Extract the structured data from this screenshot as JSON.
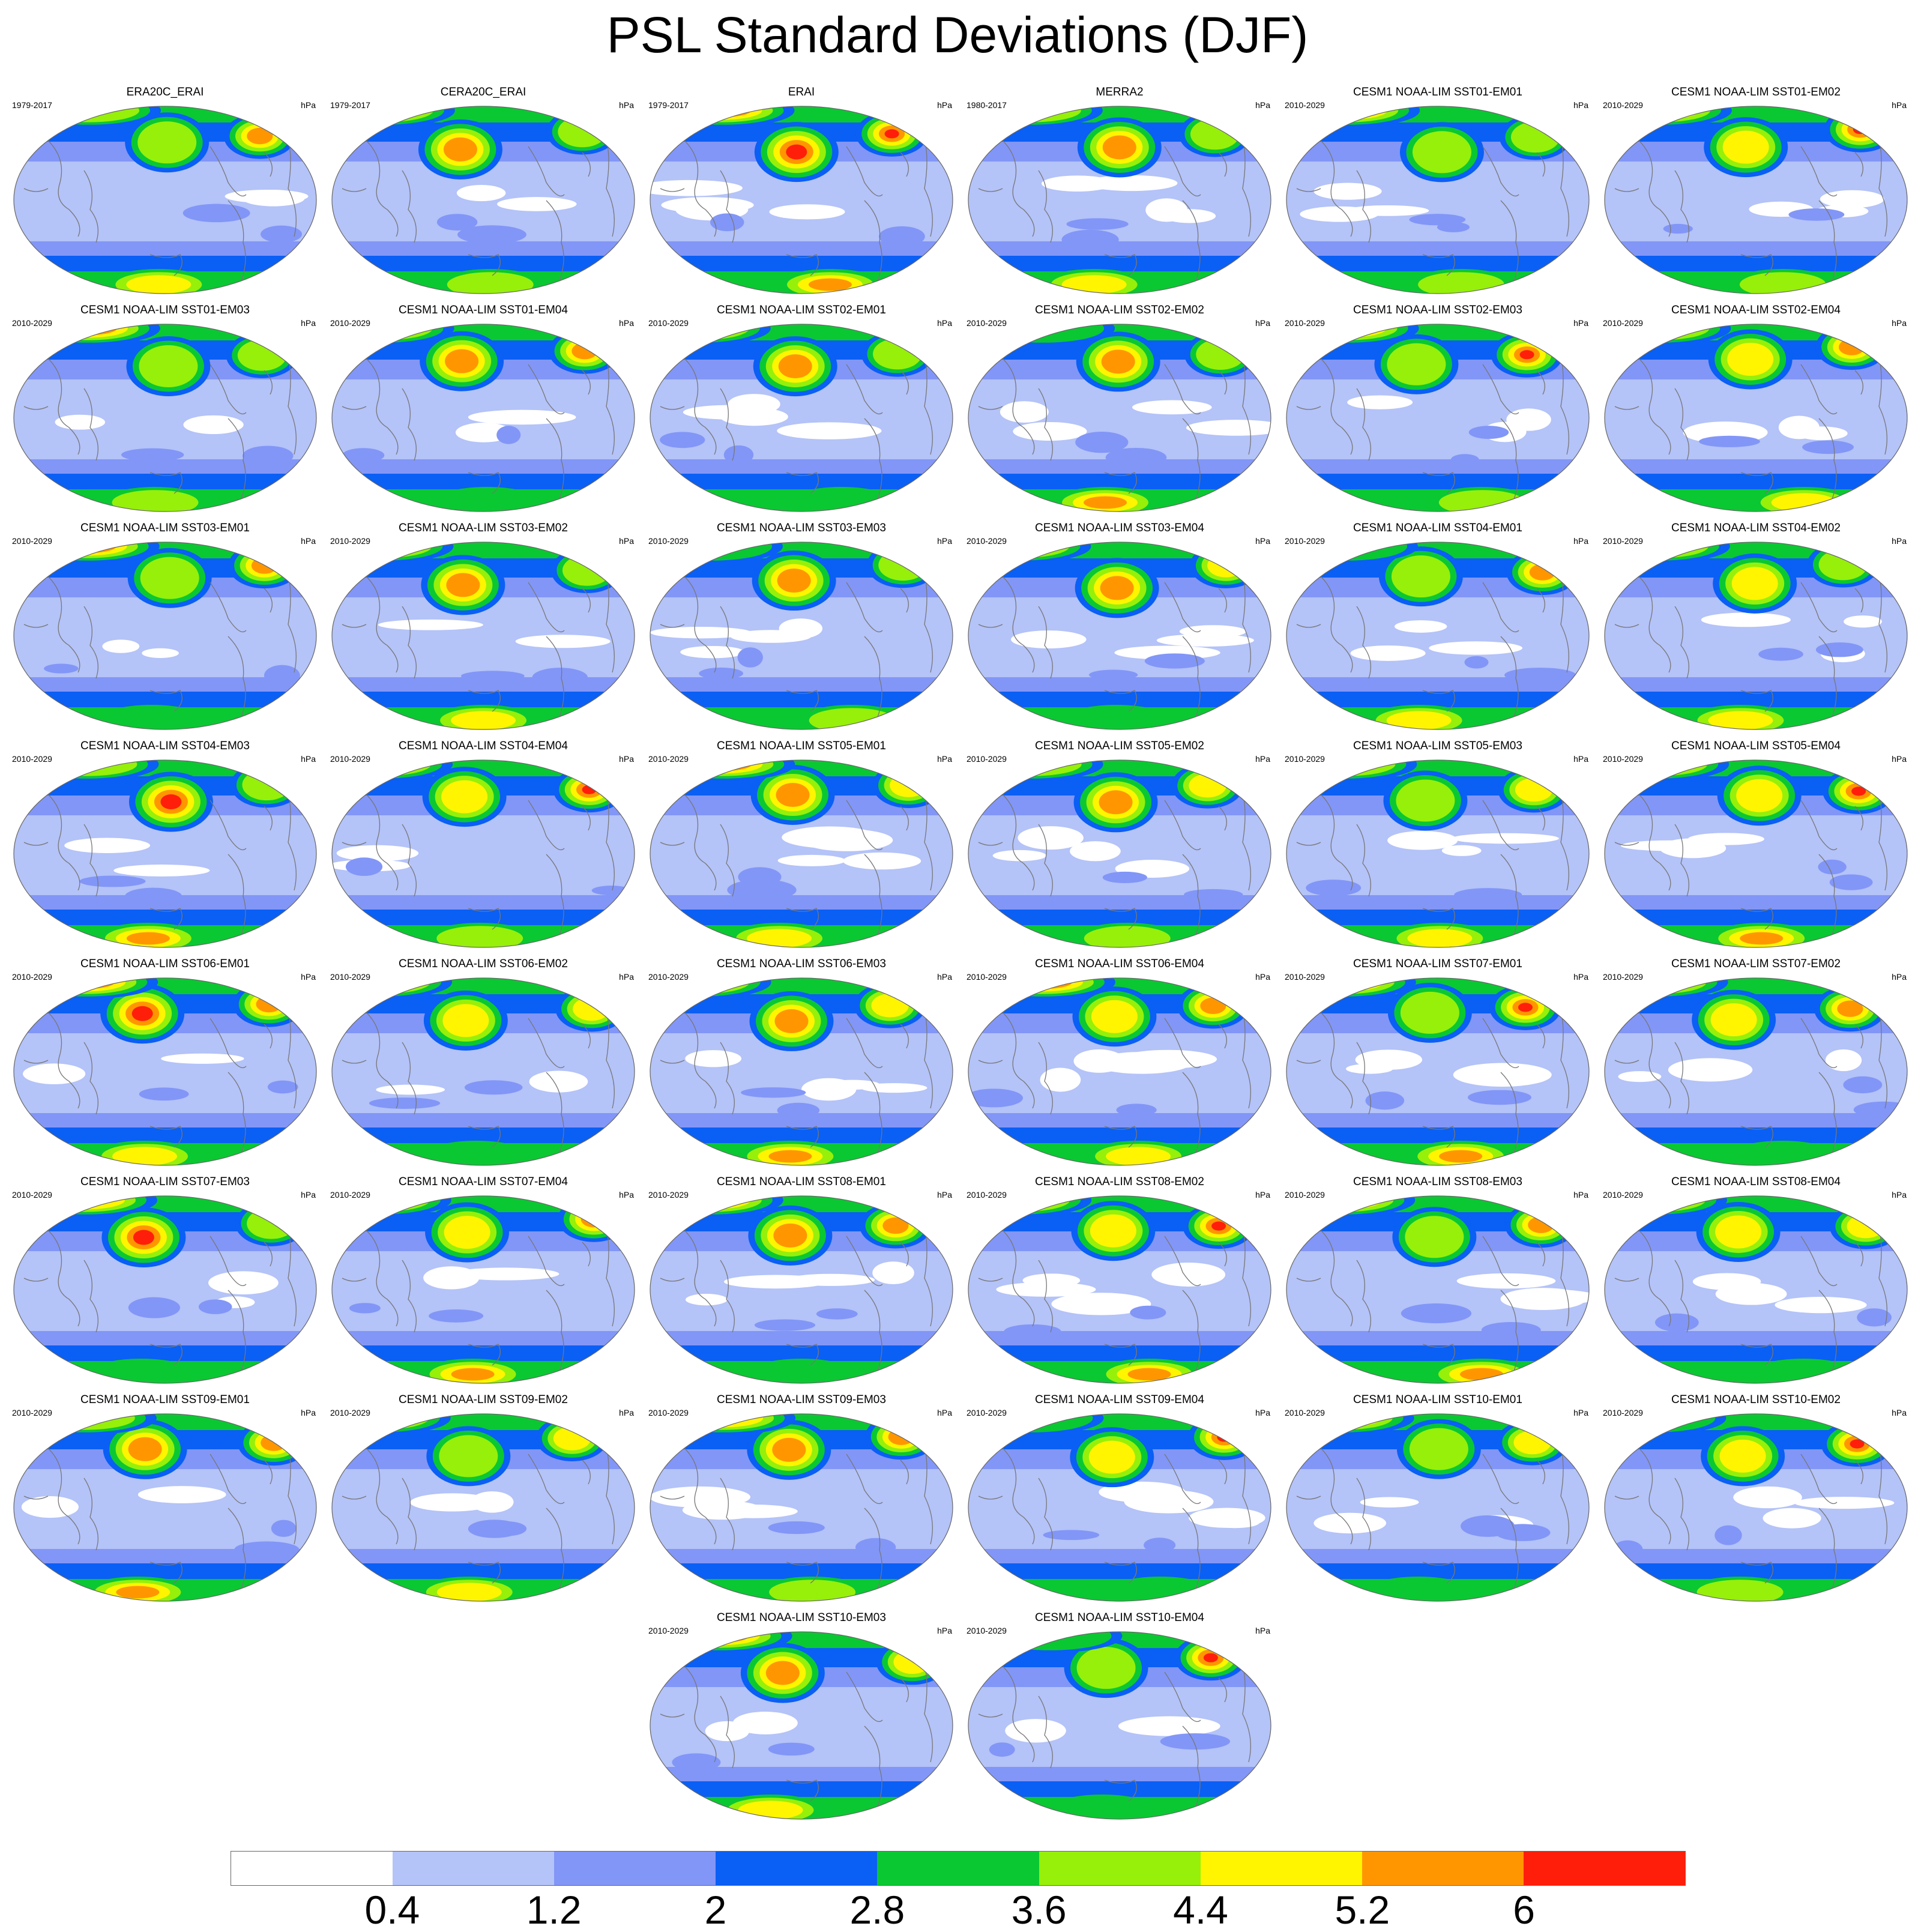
{
  "title": "PSL Standard Deviations (DJF)",
  "units": "hPa",
  "panels": [
    {
      "name": "ERA20C_ERAI",
      "period": "1979-2017"
    },
    {
      "name": "CERA20C_ERAI",
      "period": "1979-2017"
    },
    {
      "name": "ERAI",
      "period": "1979-2017"
    },
    {
      "name": "MERRA2",
      "period": "1980-2017"
    },
    {
      "name": "CESM1 NOAA-LIM SST01-EM01",
      "period": "2010-2029"
    },
    {
      "name": "CESM1 NOAA-LIM SST01-EM02",
      "period": "2010-2029"
    },
    {
      "name": "CESM1 NOAA-LIM SST01-EM03",
      "period": "2010-2029"
    },
    {
      "name": "CESM1 NOAA-LIM SST01-EM04",
      "period": "2010-2029"
    },
    {
      "name": "CESM1 NOAA-LIM SST02-EM01",
      "period": "2010-2029"
    },
    {
      "name": "CESM1 NOAA-LIM SST02-EM02",
      "period": "2010-2029"
    },
    {
      "name": "CESM1 NOAA-LIM SST02-EM03",
      "period": "2010-2029"
    },
    {
      "name": "CESM1 NOAA-LIM SST02-EM04",
      "period": "2010-2029"
    },
    {
      "name": "CESM1 NOAA-LIM SST03-EM01",
      "period": "2010-2029"
    },
    {
      "name": "CESM1 NOAA-LIM SST03-EM02",
      "period": "2010-2029"
    },
    {
      "name": "CESM1 NOAA-LIM SST03-EM03",
      "period": "2010-2029"
    },
    {
      "name": "CESM1 NOAA-LIM SST03-EM04",
      "period": "2010-2029"
    },
    {
      "name": "CESM1 NOAA-LIM SST04-EM01",
      "period": "2010-2029"
    },
    {
      "name": "CESM1 NOAA-LIM SST04-EM02",
      "period": "2010-2029"
    },
    {
      "name": "CESM1 NOAA-LIM SST04-EM03",
      "period": "2010-2029"
    },
    {
      "name": "CESM1 NOAA-LIM SST04-EM04",
      "period": "2010-2029"
    },
    {
      "name": "CESM1 NOAA-LIM SST05-EM01",
      "period": "2010-2029"
    },
    {
      "name": "CESM1 NOAA-LIM SST05-EM02",
      "period": "2010-2029"
    },
    {
      "name": "CESM1 NOAA-LIM SST05-EM03",
      "period": "2010-2029"
    },
    {
      "name": "CESM1 NOAA-LIM SST05-EM04",
      "period": "2010-2029"
    },
    {
      "name": "CESM1 NOAA-LIM SST06-EM01",
      "period": "2010-2029"
    },
    {
      "name": "CESM1 NOAA-LIM SST06-EM02",
      "period": "2010-2029"
    },
    {
      "name": "CESM1 NOAA-LIM SST06-EM03",
      "period": "2010-2029"
    },
    {
      "name": "CESM1 NOAA-LIM SST06-EM04",
      "period": "2010-2029"
    },
    {
      "name": "CESM1 NOAA-LIM SST07-EM01",
      "period": "2010-2029"
    },
    {
      "name": "CESM1 NOAA-LIM SST07-EM02",
      "period": "2010-2029"
    },
    {
      "name": "CESM1 NOAA-LIM SST07-EM03",
      "period": "2010-2029"
    },
    {
      "name": "CESM1 NOAA-LIM SST07-EM04",
      "period": "2010-2029"
    },
    {
      "name": "CESM1 NOAA-LIM SST08-EM01",
      "period": "2010-2029"
    },
    {
      "name": "CESM1 NOAA-LIM SST08-EM02",
      "period": "2010-2029"
    },
    {
      "name": "CESM1 NOAA-LIM SST08-EM03",
      "period": "2010-2029"
    },
    {
      "name": "CESM1 NOAA-LIM SST08-EM04",
      "period": "2010-2029"
    },
    {
      "name": "CESM1 NOAA-LIM SST09-EM01",
      "period": "2010-2029"
    },
    {
      "name": "CESM1 NOAA-LIM SST09-EM02",
      "period": "2010-2029"
    },
    {
      "name": "CESM1 NOAA-LIM SST09-EM03",
      "period": "2010-2029"
    },
    {
      "name": "CESM1 NOAA-LIM SST09-EM04",
      "period": "2010-2029"
    },
    {
      "name": "CESM1 NOAA-LIM SST10-EM01",
      "period": "2010-2029"
    },
    {
      "name": "CESM1 NOAA-LIM SST10-EM02",
      "period": "2010-2029"
    },
    {
      "name": "CESM1 NOAA-LIM SST10-EM03",
      "period": "2010-2029"
    },
    {
      "name": "CESM1 NOAA-LIM SST10-EM04",
      "period": "2010-2029"
    }
  ],
  "colorbar": {
    "labels": [
      "0.4",
      "1.2",
      "2",
      "2.8",
      "3.6",
      "4.4",
      "5.2",
      "6"
    ],
    "colors": [
      "#ffffff",
      "#b4c3f8",
      "#8296f7",
      "#0a5ff5",
      "#0ac832",
      "#96f00a",
      "#fff500",
      "#ff9600",
      "#ff1e0a"
    ]
  }
}
